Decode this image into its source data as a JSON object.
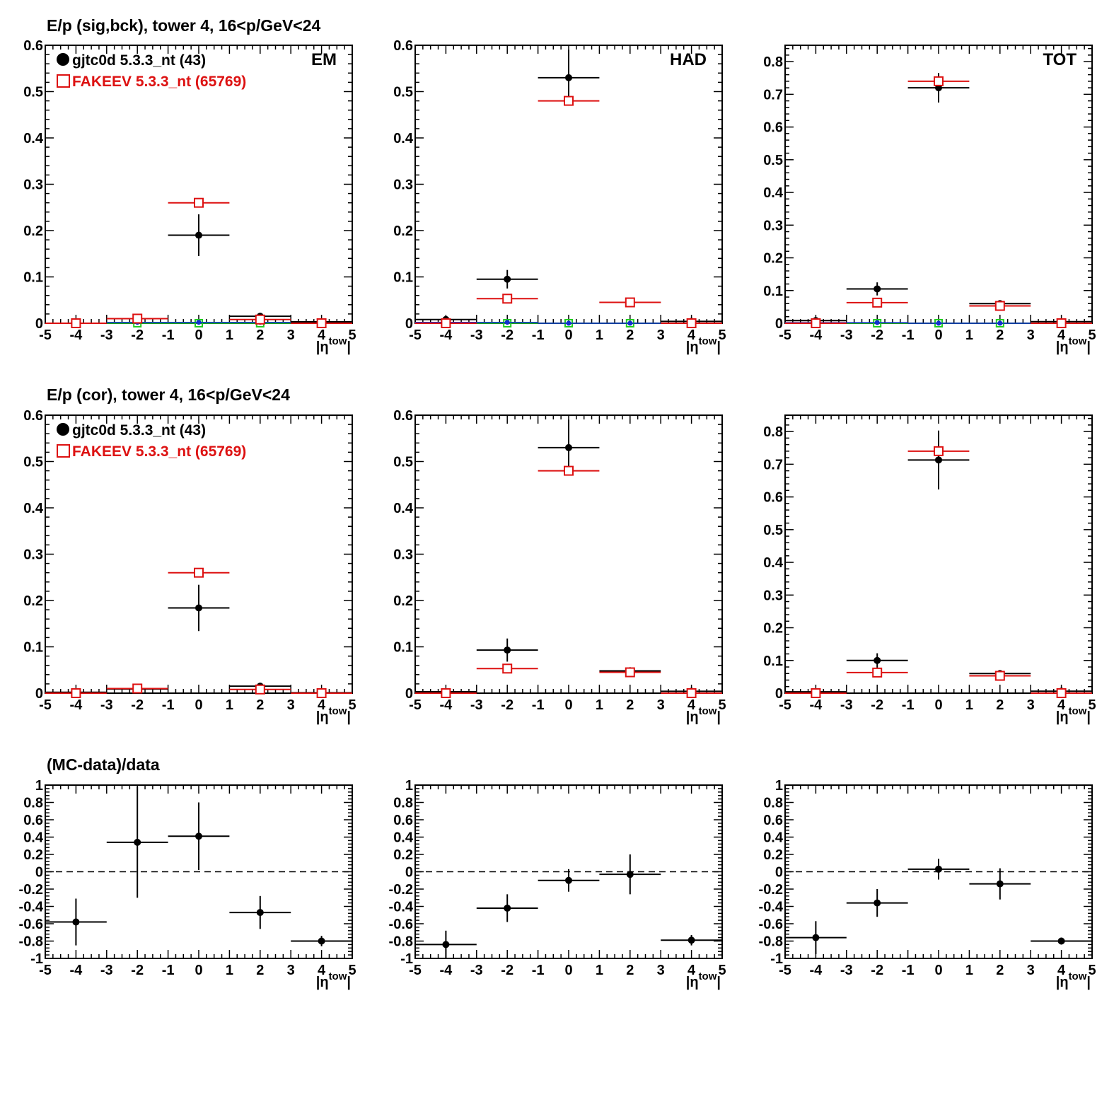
{
  "colors": {
    "data": "#000000",
    "mc": "#dd1111",
    "bck_blue": "#1030d0",
    "bck_green": "#22cc22",
    "zero_line": "#000000"
  },
  "rows": [
    {
      "title": "E/p (sig,bck), tower 4, 16<p/GeV<24",
      "show_legend": true
    },
    {
      "title": "E/p (cor), tower 4, 16<p/GeV<24",
      "show_legend": true
    },
    {
      "title": "(MC-data)/data",
      "show_legend": false
    }
  ],
  "legend": {
    "data_label": "gjtc0d 5.3.3_nt (43)",
    "mc_label": "FAKEEV 5.3.3_nt (65769)"
  },
  "axis": {
    "xlabel_main": "|η",
    "xlabel_sup": "tow",
    "xlabel_end": "|"
  },
  "chart_data": [
    {
      "type": "scatter",
      "row": 0,
      "tag": "EM",
      "xlim": [
        -5,
        5
      ],
      "ylim": [
        0,
        0.6
      ],
      "xticks": [
        "-5",
        "-4",
        "-3",
        "-2",
        "-1",
        "0",
        "1",
        "2",
        "3",
        "4",
        "5"
      ],
      "yticks": [
        "0",
        "0.1",
        "0.2",
        "0.3",
        "0.4",
        "0.5",
        "0.6"
      ],
      "x": [
        -4,
        -2,
        0,
        2,
        4
      ],
      "xerr": 1,
      "series": [
        {
          "name": "gjtc0d 5.3.3_nt (43)",
          "style": "data",
          "values": [
            0.0,
            0.01,
            0.19,
            0.015,
            0.003
          ],
          "err": [
            0.003,
            0.005,
            0.045,
            0.006,
            0.002
          ]
        },
        {
          "name": "FAKEEV 5.3.3_nt (65769)",
          "style": "mc",
          "values": [
            0.0,
            0.01,
            0.26,
            0.008,
            0.0
          ],
          "err": [
            0.001,
            0.001,
            0.004,
            0.001,
            0.001
          ]
        },
        {
          "style": "bck_blue",
          "values": [
            0.0,
            0.002,
            0.002,
            0.002,
            0.0
          ],
          "err": [
            0,
            0,
            0,
            0,
            0
          ]
        },
        {
          "style": "bck_green",
          "values": [
            0.0,
            0.0,
            0.0,
            0.0,
            0.0
          ],
          "err": [
            0,
            0,
            0,
            0,
            0
          ]
        }
      ]
    },
    {
      "type": "scatter",
      "row": 0,
      "tag": "HAD",
      "xlim": [
        -5,
        5
      ],
      "ylim": [
        0,
        0.6
      ],
      "xticks": [
        "-5",
        "-4",
        "-3",
        "-2",
        "-1",
        "0",
        "1",
        "2",
        "3",
        "4",
        "5"
      ],
      "yticks": [
        "0",
        "0.1",
        "0.2",
        "0.3",
        "0.4",
        "0.5",
        "0.6"
      ],
      "x": [
        -4,
        -2,
        0,
        2,
        4
      ],
      "xerr": 1,
      "series": [
        {
          "style": "data",
          "values": [
            0.008,
            0.095,
            0.53,
            0.045,
            0.004
          ],
          "err": [
            0.005,
            0.02,
            0.06,
            0.008,
            0.003
          ]
        },
        {
          "style": "mc",
          "values": [
            0.0,
            0.053,
            0.48,
            0.045,
            0.0
          ],
          "err": [
            0.001,
            0.002,
            0.005,
            0.002,
            0.001
          ]
        },
        {
          "style": "bck_blue",
          "values": [
            0.002,
            0.002,
            0.0,
            0.0,
            0.0
          ],
          "err": [
            0,
            0,
            0,
            0,
            0
          ]
        },
        {
          "style": "bck_green",
          "values": [
            0.0,
            0.0,
            0.0,
            0.0,
            0.0
          ],
          "err": [
            0,
            0,
            0,
            0,
            0
          ]
        }
      ]
    },
    {
      "type": "scatter",
      "row": 0,
      "tag": "TOT",
      "xlim": [
        -5,
        5
      ],
      "ylim": [
        0,
        0.85
      ],
      "xticks": [
        "-5",
        "-4",
        "-3",
        "-2",
        "-1",
        "0",
        "1",
        "2",
        "3",
        "4",
        "5"
      ],
      "yticks": [
        "0",
        "0.1",
        "0.2",
        "0.3",
        "0.4",
        "0.5",
        "0.6",
        "0.7",
        "0.8"
      ],
      "x": [
        -4,
        -2,
        0,
        2,
        4
      ],
      "xerr": 1,
      "series": [
        {
          "style": "data",
          "values": [
            0.008,
            0.105,
            0.72,
            0.06,
            0.005
          ],
          "err": [
            0.005,
            0.02,
            0.045,
            0.008,
            0.003
          ]
        },
        {
          "style": "mc",
          "values": [
            0.0,
            0.063,
            0.74,
            0.053,
            0.0
          ],
          "err": [
            0.001,
            0.002,
            0.005,
            0.002,
            0.001
          ]
        },
        {
          "style": "bck_blue",
          "values": [
            0.002,
            0.002,
            0.0,
            0.0,
            0.0
          ],
          "err": [
            0,
            0,
            0,
            0,
            0
          ]
        },
        {
          "style": "bck_green",
          "values": [
            0.0,
            0.0,
            0.0,
            0.0,
            0.0
          ],
          "err": [
            0,
            0,
            0,
            0,
            0
          ]
        }
      ]
    },
    {
      "type": "scatter",
      "row": 1,
      "tag": "",
      "xlim": [
        -5,
        5
      ],
      "ylim": [
        0,
        0.6
      ],
      "xticks": [
        "-5",
        "-4",
        "-3",
        "-2",
        "-1",
        "0",
        "1",
        "2",
        "3",
        "4",
        "5"
      ],
      "yticks": [
        "0",
        "0.1",
        "0.2",
        "0.3",
        "0.4",
        "0.5",
        "0.6"
      ],
      "x": [
        -4,
        -2,
        0,
        2,
        4
      ],
      "xerr": 1,
      "series": [
        {
          "style": "data",
          "values": [
            0.002,
            0.009,
            0.184,
            0.015,
            0.001
          ],
          "err": [
            0.003,
            0.005,
            0.05,
            0.006,
            0.002
          ]
        },
        {
          "style": "mc",
          "values": [
            0.0,
            0.01,
            0.26,
            0.008,
            0.0
          ],
          "err": [
            0.001,
            0.001,
            0.004,
            0.001,
            0.001
          ]
        }
      ]
    },
    {
      "type": "scatter",
      "row": 1,
      "tag": "",
      "xlim": [
        -5,
        5
      ],
      "ylim": [
        0,
        0.6
      ],
      "xticks": [
        "-5",
        "-4",
        "-3",
        "-2",
        "-1",
        "0",
        "1",
        "2",
        "3",
        "4",
        "5"
      ],
      "yticks": [
        "0",
        "0.1",
        "0.2",
        "0.3",
        "0.4",
        "0.5",
        "0.6"
      ],
      "x": [
        -4,
        -2,
        0,
        2,
        4
      ],
      "xerr": 1,
      "series": [
        {
          "style": "data",
          "values": [
            0.003,
            0.093,
            0.53,
            0.048,
            0.004
          ],
          "err": [
            0.004,
            0.025,
            0.06,
            0.008,
            0.003
          ]
        },
        {
          "style": "mc",
          "values": [
            0.0,
            0.053,
            0.48,
            0.045,
            0.0
          ],
          "err": [
            0.001,
            0.002,
            0.005,
            0.002,
            0.001
          ]
        }
      ]
    },
    {
      "type": "scatter",
      "row": 1,
      "tag": "",
      "xlim": [
        -5,
        5
      ],
      "ylim": [
        0,
        0.85
      ],
      "xticks": [
        "-5",
        "-4",
        "-3",
        "-2",
        "-1",
        "0",
        "1",
        "2",
        "3",
        "4",
        "5"
      ],
      "yticks": [
        "0",
        "0.1",
        "0.2",
        "0.3",
        "0.4",
        "0.5",
        "0.6",
        "0.7",
        "0.8"
      ],
      "x": [
        -4,
        -2,
        0,
        2,
        4
      ],
      "xerr": 1,
      "series": [
        {
          "style": "data",
          "values": [
            0.004,
            0.1,
            0.713,
            0.06,
            0.006
          ],
          "err": [
            0.004,
            0.022,
            0.09,
            0.008,
            0.003
          ]
        },
        {
          "style": "mc",
          "values": [
            0.0,
            0.063,
            0.74,
            0.053,
            0.0
          ],
          "err": [
            0.001,
            0.002,
            0.005,
            0.002,
            0.001
          ]
        }
      ]
    },
    {
      "type": "scatter",
      "row": 2,
      "tag": "",
      "xlim": [
        -5,
        5
      ],
      "ylim": [
        -1,
        1
      ],
      "zero_line": true,
      "xticks": [
        "-5",
        "-4",
        "-3",
        "-2",
        "-1",
        "0",
        "1",
        "2",
        "3",
        "4",
        "5"
      ],
      "yticks": [
        "-1",
        "-0.8",
        "-0.6",
        "-0.4",
        "-0.2",
        "0",
        "0.2",
        "0.4",
        "0.6",
        "0.8",
        "1"
      ],
      "x": [
        -4,
        -2,
        0,
        2,
        4
      ],
      "xerr": 1,
      "series": [
        {
          "style": "data",
          "values": [
            -0.58,
            0.34,
            0.41,
            -0.47,
            -0.8
          ],
          "err": [
            0.27,
            0.64,
            0.39,
            0.19,
            0.06
          ]
        }
      ]
    },
    {
      "type": "scatter",
      "row": 2,
      "tag": "",
      "xlim": [
        -5,
        5
      ],
      "ylim": [
        -1,
        1
      ],
      "zero_line": true,
      "xticks": [
        "-5",
        "-4",
        "-3",
        "-2",
        "-1",
        "0",
        "1",
        "2",
        "3",
        "4",
        "5"
      ],
      "yticks": [
        "-1",
        "-0.8",
        "-0.6",
        "-0.4",
        "-0.2",
        "0",
        "0.2",
        "0.4",
        "0.6",
        "0.8",
        "1"
      ],
      "x": [
        -4,
        -2,
        0,
        2,
        4
      ],
      "xerr": 1,
      "series": [
        {
          "style": "data",
          "values": [
            -0.84,
            -0.42,
            -0.1,
            -0.03,
            -0.79
          ],
          "err": [
            0.16,
            0.16,
            0.13,
            0.23,
            0.06
          ]
        }
      ]
    },
    {
      "type": "scatter",
      "row": 2,
      "tag": "",
      "xlim": [
        -5,
        5
      ],
      "ylim": [
        -1,
        1
      ],
      "zero_line": true,
      "xticks": [
        "-5",
        "-4",
        "-3",
        "-2",
        "-1",
        "0",
        "1",
        "2",
        "3",
        "4",
        "5"
      ],
      "yticks": [
        "-1",
        "-0.8",
        "-0.6",
        "-0.4",
        "-0.2",
        "0",
        "0.2",
        "0.4",
        "0.6",
        "0.8",
        "1"
      ],
      "x": [
        -4,
        -2,
        0,
        2,
        4
      ],
      "xerr": 1,
      "series": [
        {
          "style": "data",
          "values": [
            -0.76,
            -0.36,
            0.03,
            -0.14,
            -0.8
          ],
          "err": [
            0.19,
            0.16,
            0.12,
            0.18,
            0.04
          ]
        }
      ]
    }
  ]
}
